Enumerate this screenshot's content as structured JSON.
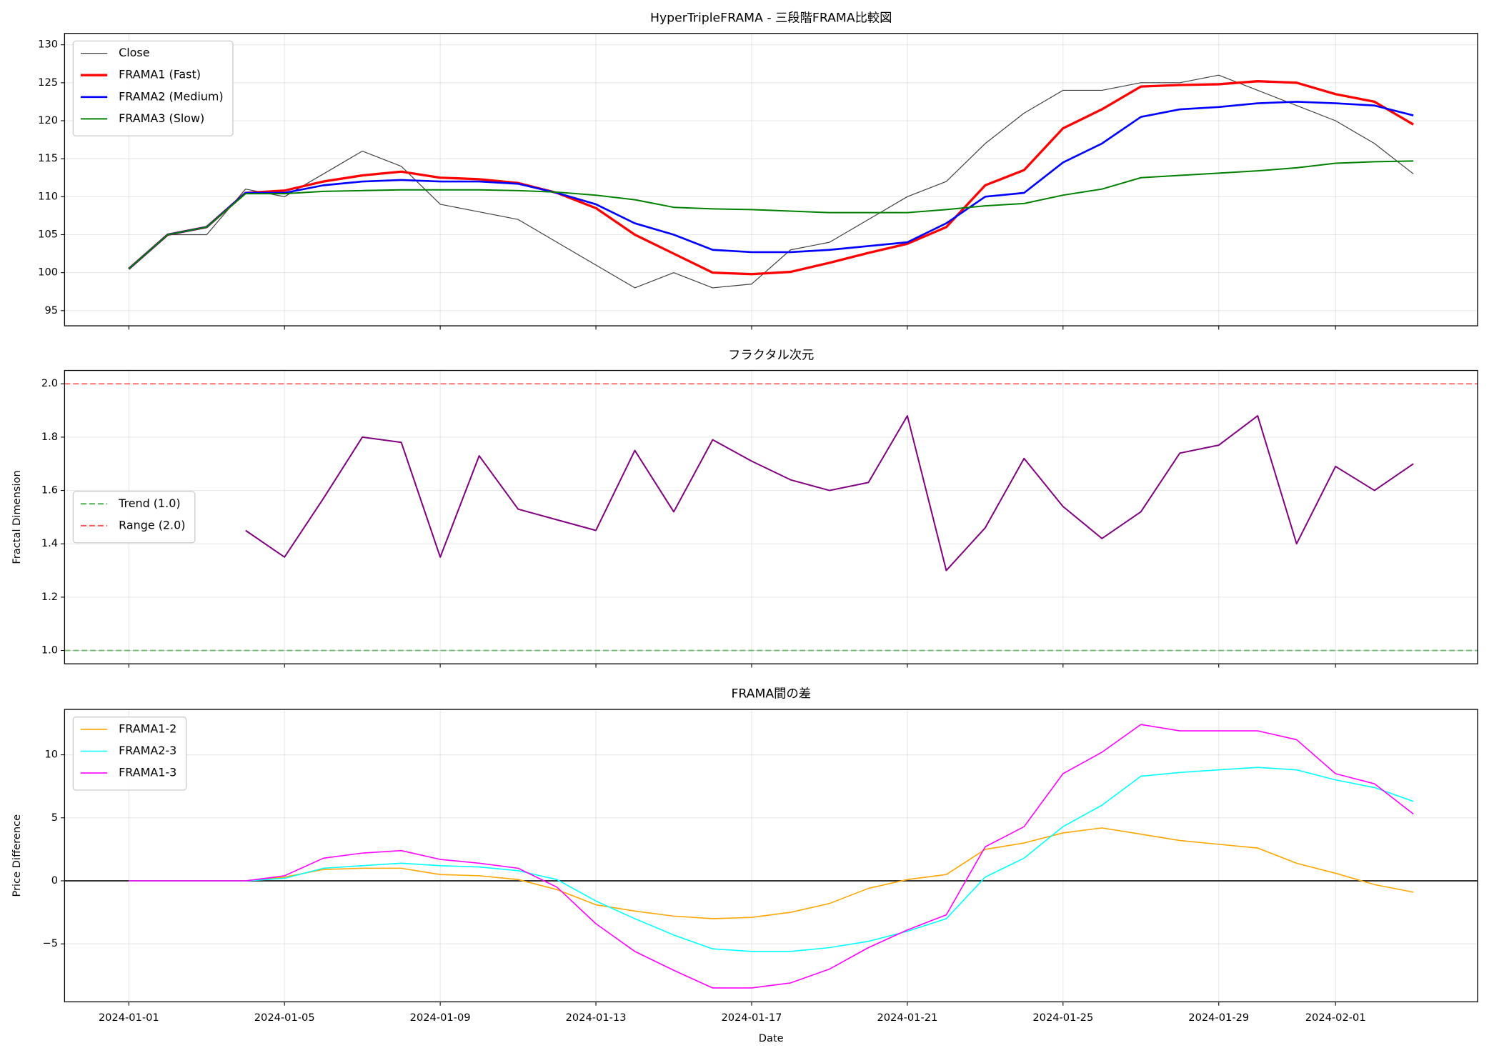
{
  "chart_data": [
    {
      "type": "line",
      "title": "HyperTripleFRAMA - 三段階FRAMA比較図",
      "x": [
        "2024-01-01",
        "2024-01-02",
        "2024-01-03",
        "2024-01-04",
        "2024-01-05",
        "2024-01-06",
        "2024-01-07",
        "2024-01-08",
        "2024-01-09",
        "2024-01-10",
        "2024-01-11",
        "2024-01-12",
        "2024-01-13",
        "2024-01-14",
        "2024-01-15",
        "2024-01-16",
        "2024-01-17",
        "2024-01-18",
        "2024-01-19",
        "2024-01-20",
        "2024-01-21",
        "2024-01-22",
        "2024-01-23",
        "2024-01-24",
        "2024-01-25",
        "2024-01-26",
        "2024-01-27",
        "2024-01-28",
        "2024-01-29",
        "2024-01-30",
        "2024-01-31",
        "2024-02-01",
        "2024-02-02",
        "2024-02-03"
      ],
      "series": [
        {
          "name": "Close",
          "color": "#404040",
          "width": 0.9,
          "values": [
            100.5,
            105,
            105,
            111,
            110,
            113,
            116,
            114,
            109,
            108,
            107,
            104,
            101,
            98,
            100,
            98,
            98.5,
            103,
            104,
            107,
            110,
            112,
            117,
            121,
            124,
            124,
            125,
            125,
            126,
            124,
            122,
            120,
            117,
            113
          ]
        },
        {
          "name": "FRAMA1 (Fast)",
          "color": "#ff0000",
          "width": 2.5,
          "values": [
            100.5,
            105,
            106,
            110.5,
            110.8,
            112,
            112.8,
            113.3,
            112.5,
            112.3,
            111.8,
            110.5,
            108.5,
            105,
            102.5,
            100,
            99.8,
            100.1,
            101.3,
            102.6,
            103.8,
            106,
            111.5,
            113.5,
            119,
            121.5,
            124.5,
            124.7,
            124.8,
            125.2,
            125,
            123.5,
            122.5,
            119.5
          ]
        },
        {
          "name": "FRAMA2 (Medium)",
          "color": "#0000ff",
          "width": 2,
          "values": [
            100.5,
            105,
            106,
            110.5,
            110.5,
            111.5,
            112,
            112.2,
            112,
            112,
            111.7,
            110.5,
            109,
            106.5,
            105,
            103,
            102.7,
            102.7,
            103,
            103.5,
            104,
            106.5,
            110,
            110.5,
            114.5,
            117,
            120.5,
            121.5,
            121.8,
            122.3,
            122.5,
            122.3,
            122,
            120.7
          ]
        },
        {
          "name": "FRAMA3 (Slow)",
          "color": "#008000",
          "width": 1.5,
          "values": [
            100.5,
            105,
            106,
            110.4,
            110.4,
            110.7,
            110.8,
            110.9,
            110.9,
            110.9,
            110.8,
            110.6,
            110.2,
            109.6,
            108.6,
            108.4,
            108.3,
            108.1,
            107.9,
            107.9,
            107.9,
            108.3,
            108.8,
            109.1,
            110.2,
            111,
            112.5,
            112.8,
            113.1,
            113.4,
            113.8,
            114.4,
            114.6,
            114.7
          ]
        }
      ],
      "ylim": [
        93,
        131.5
      ],
      "yticks": [
        95,
        100,
        105,
        110,
        115,
        120,
        125,
        130
      ],
      "grid": true,
      "legend": "upper left"
    },
    {
      "type": "line",
      "title": "フラクタル次元",
      "ylabel": "Fractal Dimension",
      "x": [
        "2024-01-01",
        "2024-01-02",
        "2024-01-03",
        "2024-01-04",
        "2024-01-05",
        "2024-01-06",
        "2024-01-07",
        "2024-01-08",
        "2024-01-09",
        "2024-01-10",
        "2024-01-11",
        "2024-01-12",
        "2024-01-13",
        "2024-01-14",
        "2024-01-15",
        "2024-01-16",
        "2024-01-17",
        "2024-01-18",
        "2024-01-19",
        "2024-01-20",
        "2024-01-21",
        "2024-01-22",
        "2024-01-23",
        "2024-01-24",
        "2024-01-25",
        "2024-01-26",
        "2024-01-27",
        "2024-01-28",
        "2024-01-29",
        "2024-01-30",
        "2024-01-31",
        "2024-02-01",
        "2024-02-02",
        "2024-02-03"
      ],
      "series": [
        {
          "color": "#800080",
          "width": 1.5,
          "values": [
            null,
            null,
            null,
            1.45,
            1.35,
            1.57,
            1.8,
            1.78,
            1.35,
            1.73,
            1.53,
            1.49,
            1.45,
            1.75,
            1.52,
            1.79,
            1.71,
            1.64,
            1.6,
            1.63,
            1.88,
            1.3,
            1.46,
            1.72,
            1.54,
            1.42,
            1.52,
            1.74,
            1.77,
            1.88,
            1.4,
            1.69,
            1.6,
            1.7
          ]
        }
      ],
      "hlines": [
        {
          "name": "Trend (1.0)",
          "value": 1.0,
          "color": "#4caf50",
          "dashed": true
        },
        {
          "name": "Range (2.0)",
          "value": 2.0,
          "color": "#ff5555",
          "dashed": true
        }
      ],
      "ylim": [
        0.95,
        2.05
      ],
      "yticks": [
        {
          "value": 1,
          "label": "1.0"
        },
        1.2,
        1.4,
        1.6,
        1.8,
        {
          "value": 2,
          "label": "2.0"
        }
      ],
      "grid": true,
      "legend": "center left"
    },
    {
      "type": "line",
      "title": "FRAMA間の差",
      "xlabel": "Date",
      "ylabel": "Price Difference",
      "x": [
        "2024-01-01",
        "2024-01-02",
        "2024-01-03",
        "2024-01-04",
        "2024-01-05",
        "2024-01-06",
        "2024-01-07",
        "2024-01-08",
        "2024-01-09",
        "2024-01-10",
        "2024-01-11",
        "2024-01-12",
        "2024-01-13",
        "2024-01-14",
        "2024-01-15",
        "2024-01-16",
        "2024-01-17",
        "2024-01-18",
        "2024-01-19",
        "2024-01-20",
        "2024-01-21",
        "2024-01-22",
        "2024-01-23",
        "2024-01-24",
        "2024-01-25",
        "2024-01-26",
        "2024-01-27",
        "2024-01-28",
        "2024-01-29",
        "2024-01-30",
        "2024-01-31",
        "2024-02-01",
        "2024-02-02",
        "2024-02-03"
      ],
      "series": [
        {
          "name": "FRAMA1-2",
          "color": "#ffa500",
          "width": 1.2,
          "values": [
            0,
            0,
            0,
            0,
            0.3,
            0.9,
            1,
            1,
            0.5,
            0.4,
            0.1,
            -0.7,
            -1.9,
            -2.4,
            -2.8,
            -3,
            -2.9,
            -2.5,
            -1.8,
            -0.6,
            0.1,
            0.5,
            2.5,
            3,
            3.8,
            4.2,
            3.7,
            3.2,
            2.9,
            2.6,
            1.4,
            0.6,
            -0.3,
            -0.9
          ]
        },
        {
          "name": "FRAMA2-3",
          "color": "#00ffff",
          "width": 1.2,
          "values": [
            0,
            0,
            0,
            0,
            0.2,
            1,
            1.2,
            1.4,
            1.2,
            1.1,
            0.8,
            0.1,
            -1.6,
            -3,
            -4.3,
            -5.4,
            -5.6,
            -5.6,
            -5.3,
            -4.8,
            -4,
            -3,
            0.3,
            1.8,
            4.3,
            6,
            8.3,
            8.6,
            8.8,
            9,
            8.8,
            8,
            7.4,
            6.3
          ]
        },
        {
          "name": "FRAMA1-3",
          "color": "#ff00ff",
          "width": 1.2,
          "values": [
            0,
            0,
            0,
            0,
            0.4,
            1.8,
            2.2,
            2.4,
            1.7,
            1.4,
            1,
            -0.5,
            -3.4,
            -5.6,
            -7.1,
            -8.5,
            -8.5,
            -8.1,
            -7,
            -5.3,
            -3.9,
            -2.7,
            2.7,
            4.3,
            8.5,
            10.2,
            12.4,
            11.9,
            11.9,
            11.9,
            11.2,
            8.5,
            7.7,
            5.3
          ]
        }
      ],
      "hlines": [
        {
          "value": 0,
          "color": "#333333",
          "dashed": false
        }
      ],
      "ylim": [
        -9.6,
        13.6
      ],
      "yticks": [
        {
          "value": -5,
          "label": "−5"
        },
        0,
        5,
        10
      ],
      "xticks": [
        "2024-01-01",
        "2024-01-05",
        "2024-01-09",
        "2024-01-13",
        "2024-01-17",
        "2024-01-21",
        "2024-01-25",
        "2024-01-29",
        "2024-02-01"
      ],
      "grid": true,
      "legend": "upper left"
    }
  ]
}
